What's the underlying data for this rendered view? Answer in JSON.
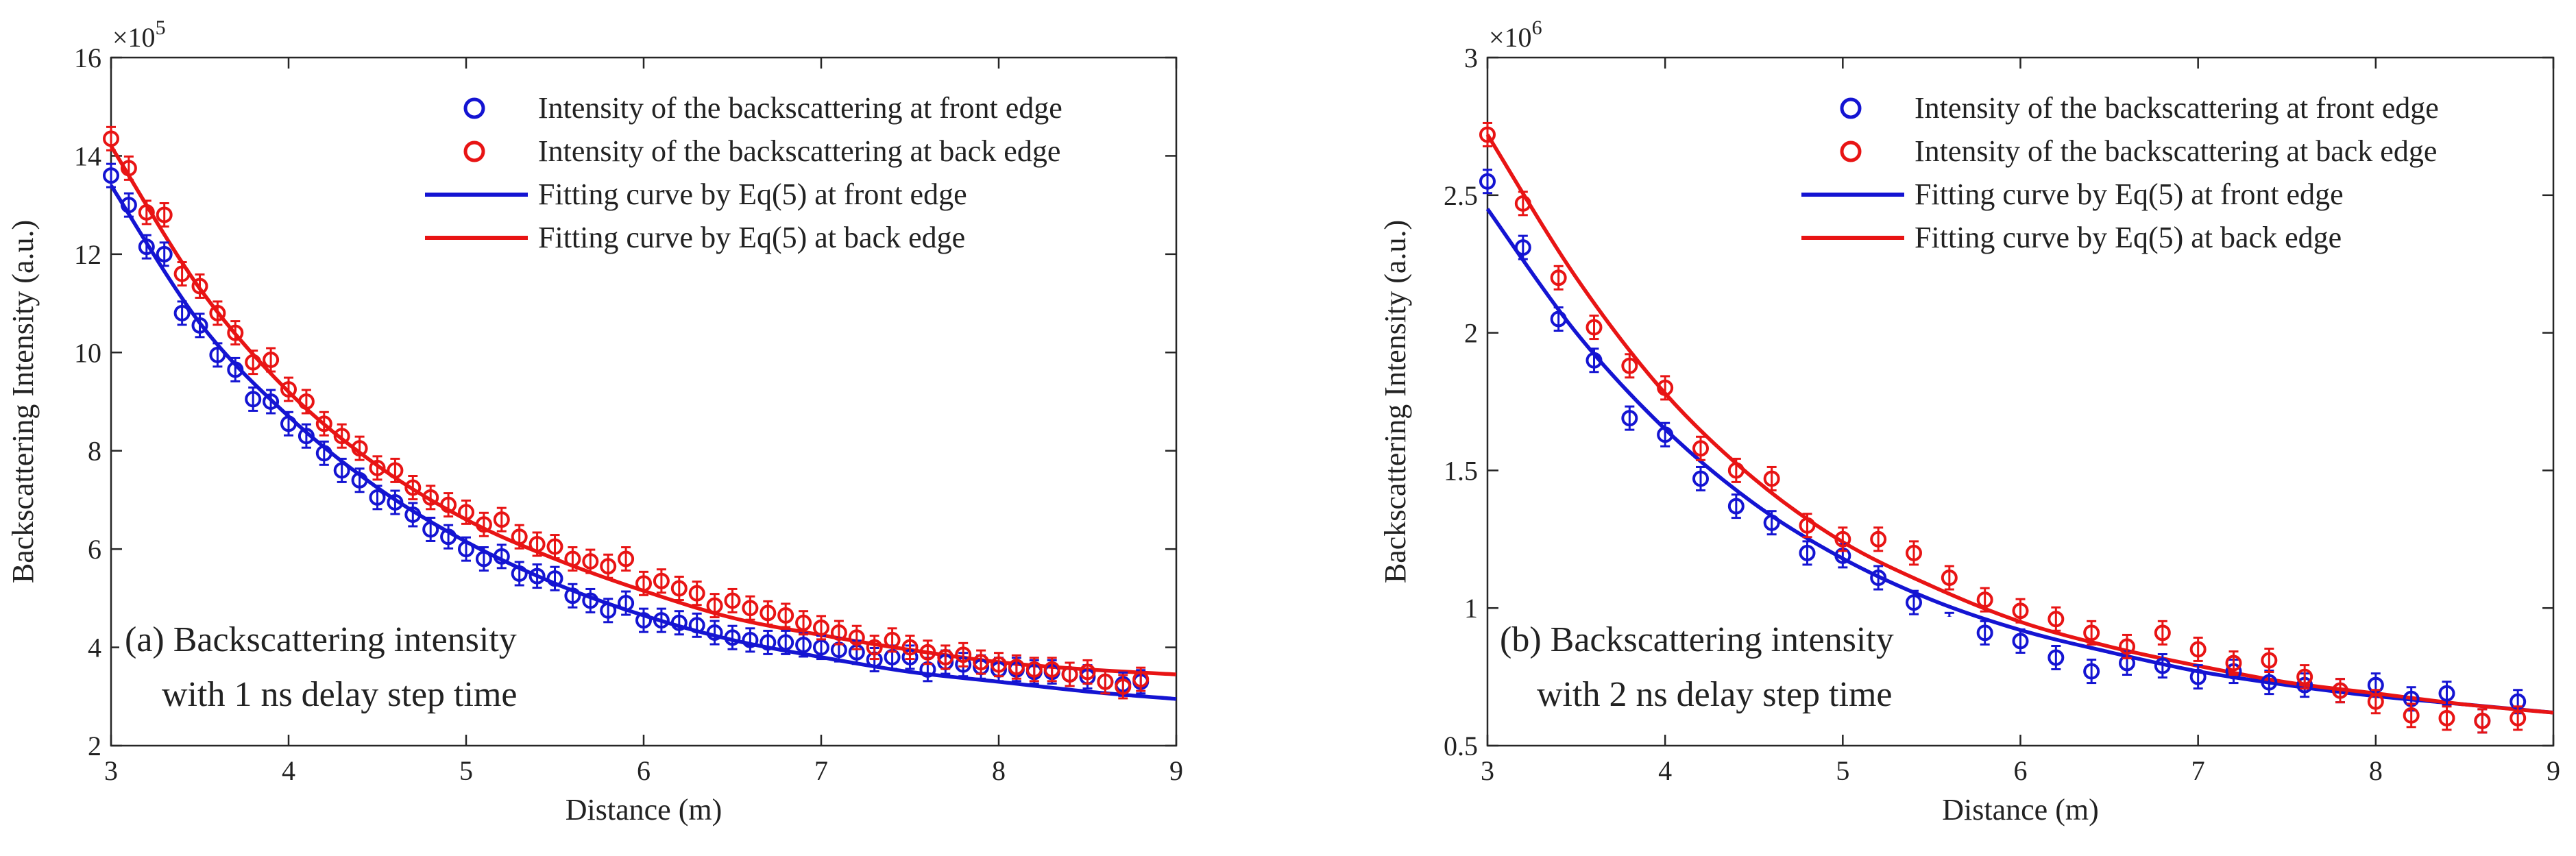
{
  "chart_data": [
    {
      "type": "scatter",
      "panel_label": "(a)",
      "annotation_lines": [
        "(a) Backscattering intensity",
        "with 1 ns delay step time"
      ],
      "xlabel": "Distance (m)",
      "ylabel": "Backscattering Intensity (a.u.)",
      "xlim": [
        3,
        9
      ],
      "ylim": [
        2,
        16
      ],
      "scale": 100000,
      "exponent_label": "×10",
      "exponent_power": "5",
      "xticks": [
        3,
        4,
        5,
        6,
        7,
        8,
        9
      ],
      "yticks": [
        2,
        4,
        6,
        8,
        10,
        12,
        14,
        16
      ],
      "grid": false,
      "legend_position": "top-right",
      "legend": [
        "Intensity of the backscattering at front edge",
        "Intensity of the backscattering at back edge",
        "Fitting curve by Eq(5) at front edge",
        "Fitting curve by Eq(5) at back edge"
      ],
      "colors": {
        "front": "#1414d2",
        "back": "#e81414"
      },
      "series": [
        {
          "name": "Intensity of the backscattering at front edge",
          "kind": "points",
          "x": [
            3.0,
            3.1,
            3.2,
            3.3,
            3.4,
            3.5,
            3.6,
            3.7,
            3.8,
            3.9,
            4.0,
            4.1,
            4.2,
            4.3,
            4.4,
            4.5,
            4.6,
            4.7,
            4.8,
            4.9,
            5.0,
            5.1,
            5.2,
            5.3,
            5.4,
            5.5,
            5.6,
            5.7,
            5.8,
            5.9,
            6.0,
            6.1,
            6.2,
            6.3,
            6.4,
            6.5,
            6.6,
            6.7,
            6.8,
            6.9,
            7.0,
            7.1,
            7.2,
            7.3,
            7.4,
            7.5,
            7.6,
            7.7,
            7.8,
            7.9,
            8.0,
            8.1,
            8.2,
            8.3,
            8.4,
            8.5,
            8.6,
            8.7,
            8.8
          ],
          "y": [
            13.6,
            13.0,
            12.15,
            12.0,
            10.8,
            10.55,
            9.95,
            9.65,
            9.05,
            9.0,
            8.55,
            8.3,
            7.95,
            7.6,
            7.4,
            7.05,
            6.95,
            6.7,
            6.4,
            6.25,
            6.0,
            5.8,
            5.85,
            5.5,
            5.45,
            5.4,
            5.05,
            4.95,
            4.75,
            4.9,
            4.55,
            4.55,
            4.5,
            4.45,
            4.3,
            4.2,
            4.15,
            4.1,
            4.1,
            4.05,
            4.0,
            3.95,
            3.9,
            3.75,
            3.8,
            3.8,
            3.55,
            3.7,
            3.65,
            3.6,
            3.55,
            3.55,
            3.5,
            3.5,
            3.45,
            3.4,
            3.3,
            3.25,
            3.3
          ]
        },
        {
          "name": "Intensity of the backscattering at back edge",
          "kind": "points",
          "x": [
            3.0,
            3.1,
            3.2,
            3.3,
            3.4,
            3.5,
            3.6,
            3.7,
            3.8,
            3.9,
            4.0,
            4.1,
            4.2,
            4.3,
            4.4,
            4.5,
            4.6,
            4.7,
            4.8,
            4.9,
            5.0,
            5.1,
            5.2,
            5.3,
            5.4,
            5.5,
            5.6,
            5.7,
            5.8,
            5.9,
            6.0,
            6.1,
            6.2,
            6.3,
            6.4,
            6.5,
            6.6,
            6.7,
            6.8,
            6.9,
            7.0,
            7.1,
            7.2,
            7.3,
            7.4,
            7.5,
            7.6,
            7.7,
            7.8,
            7.9,
            8.0,
            8.1,
            8.2,
            8.3,
            8.4,
            8.5,
            8.6,
            8.7,
            8.8
          ],
          "y": [
            14.35,
            13.75,
            12.85,
            12.8,
            11.6,
            11.35,
            10.8,
            10.4,
            9.8,
            9.85,
            9.25,
            9.0,
            8.55,
            8.3,
            8.05,
            7.65,
            7.6,
            7.25,
            7.05,
            6.9,
            6.75,
            6.5,
            6.6,
            6.25,
            6.1,
            6.05,
            5.8,
            5.75,
            5.65,
            5.8,
            5.3,
            5.35,
            5.2,
            5.1,
            4.85,
            4.95,
            4.8,
            4.7,
            4.65,
            4.5,
            4.4,
            4.3,
            4.2,
            4.0,
            4.15,
            4.0,
            3.9,
            3.8,
            3.85,
            3.7,
            3.65,
            3.6,
            3.55,
            3.55,
            3.45,
            3.5,
            3.3,
            3.2,
            3.35
          ]
        },
        {
          "name": "Fitting curve by Eq(5) at front edge",
          "kind": "line",
          "x": [
            3.0,
            3.5,
            4.0,
            4.5,
            5.0,
            5.5,
            6.0,
            6.5,
            7.0,
            7.5,
            8.0,
            8.5,
            9.0
          ],
          "y": [
            13.4,
            10.6,
            8.7,
            7.25,
            6.15,
            5.3,
            4.65,
            4.15,
            3.8,
            3.5,
            3.3,
            3.1,
            2.95
          ]
        },
        {
          "name": "Fitting curve by Eq(5) at back edge",
          "kind": "line",
          "x": [
            3.0,
            3.5,
            4.0,
            4.5,
            5.0,
            5.5,
            6.0,
            6.5,
            7.0,
            7.5,
            8.0,
            8.5,
            9.0
          ],
          "y": [
            14.2,
            11.3,
            9.2,
            7.7,
            6.6,
            5.8,
            5.15,
            4.6,
            4.25,
            3.95,
            3.7,
            3.55,
            3.45
          ]
        }
      ]
    },
    {
      "type": "scatter",
      "panel_label": "(b)",
      "annotation_lines": [
        "(b) Backscattering intensity",
        "with 2 ns delay step time"
      ],
      "xlabel": "Distance (m)",
      "ylabel": "Backscattering Intensity (a.u.)",
      "xlim": [
        3,
        9
      ],
      "ylim": [
        0.5,
        3
      ],
      "scale": 1000000,
      "exponent_label": "×10",
      "exponent_power": "6",
      "xticks": [
        3,
        4,
        5,
        6,
        7,
        8,
        9
      ],
      "yticks": [
        0.5,
        1,
        1.5,
        2,
        2.5,
        3
      ],
      "grid": false,
      "legend_position": "top-right",
      "legend": [
        "Intensity of the backscattering at front edge",
        "Intensity of the backscattering at back edge",
        "Fitting curve by Eq(5) at front edge",
        "Fitting curve by Eq(5) at back edge"
      ],
      "colors": {
        "front": "#1414d2",
        "back": "#e81414"
      },
      "series": [
        {
          "name": "Intensity of the backscattering at front edge",
          "kind": "points",
          "x": [
            3.0,
            3.2,
            3.4,
            3.6,
            3.8,
            4.0,
            4.2,
            4.4,
            4.6,
            4.8,
            5.0,
            5.2,
            5.4,
            5.6,
            5.8,
            6.0,
            6.2,
            6.4,
            6.6,
            6.8,
            7.0,
            7.2,
            7.4,
            7.6,
            7.8,
            8.0,
            8.2,
            8.4,
            8.6,
            8.8
          ],
          "y": [
            2.55,
            2.31,
            2.05,
            1.9,
            1.69,
            1.63,
            1.47,
            1.37,
            1.31,
            1.2,
            1.19,
            1.11,
            1.02,
            0.94,
            0.91,
            0.88,
            0.82,
            0.77,
            0.8,
            0.79,
            0.75,
            0.77,
            0.73,
            0.72,
            0.7,
            0.72,
            0.67,
            0.69,
            0.59,
            0.66
          ]
        },
        {
          "name": "Intensity of the backscattering at back edge",
          "kind": "points",
          "x": [
            3.0,
            3.2,
            3.4,
            3.6,
            3.8,
            4.0,
            4.2,
            4.4,
            4.6,
            4.8,
            5.0,
            5.2,
            5.4,
            5.6,
            5.8,
            6.0,
            6.2,
            6.4,
            6.6,
            6.8,
            7.0,
            7.2,
            7.4,
            7.6,
            7.8,
            8.0,
            8.2,
            8.4,
            8.6,
            8.8
          ],
          "y": [
            2.72,
            2.47,
            2.2,
            2.02,
            1.88,
            1.8,
            1.58,
            1.5,
            1.47,
            1.3,
            1.25,
            1.25,
            1.2,
            1.11,
            1.03,
            0.99,
            0.96,
            0.91,
            0.86,
            0.91,
            0.85,
            0.8,
            0.81,
            0.75,
            0.7,
            0.66,
            0.61,
            0.6,
            0.59,
            0.6
          ]
        },
        {
          "name": "Fitting curve by Eq(5) at front edge",
          "kind": "line",
          "x": [
            3.0,
            3.5,
            4.0,
            4.5,
            5.0,
            5.5,
            6.0,
            6.5,
            7.0,
            7.5,
            8.0,
            8.5,
            9.0
          ],
          "y": [
            2.45,
            2.0,
            1.65,
            1.38,
            1.18,
            1.03,
            0.92,
            0.84,
            0.77,
            0.72,
            0.68,
            0.65,
            0.62
          ]
        },
        {
          "name": "Fitting curve by Eq(5) at back edge",
          "kind": "line",
          "x": [
            3.0,
            3.5,
            4.0,
            4.5,
            5.0,
            5.5,
            6.0,
            6.5,
            7.0,
            7.5,
            8.0,
            8.5,
            9.0
          ],
          "y": [
            2.72,
            2.2,
            1.78,
            1.47,
            1.24,
            1.08,
            0.95,
            0.86,
            0.79,
            0.73,
            0.69,
            0.65,
            0.62
          ]
        }
      ]
    }
  ]
}
